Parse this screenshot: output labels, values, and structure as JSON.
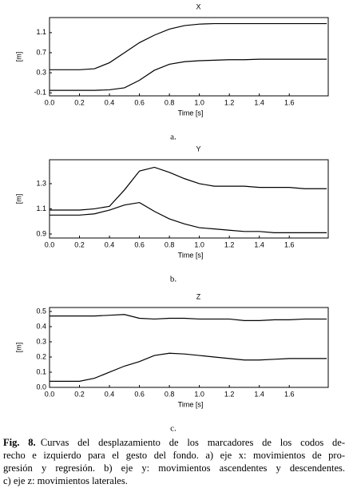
{
  "chart_data": [
    {
      "type": "line",
      "title": "X",
      "xlabel": "Time [s]",
      "ylabel": "[m]",
      "subcaption": "a.",
      "x": [
        0,
        0.1,
        0.2,
        0.3,
        0.4,
        0.5,
        0.6,
        0.7,
        0.8,
        0.9,
        1.0,
        1.1,
        1.2,
        1.3,
        1.4,
        1.5,
        1.6,
        1.7,
        1.85
      ],
      "series": [
        {
          "color": "#000000",
          "values": [
            0.36,
            0.36,
            0.36,
            0.38,
            0.5,
            0.7,
            0.9,
            1.05,
            1.17,
            1.24,
            1.27,
            1.28,
            1.28,
            1.28,
            1.28,
            1.28,
            1.28,
            1.28,
            1.28
          ]
        },
        {
          "color": "#000000",
          "values": [
            -0.05,
            -0.05,
            -0.05,
            -0.05,
            -0.04,
            0.0,
            0.15,
            0.35,
            0.47,
            0.52,
            0.54,
            0.55,
            0.56,
            0.56,
            0.57,
            0.57,
            0.57,
            0.57,
            0.57
          ]
        }
      ],
      "xlim": [
        0,
        1.86
      ],
      "ylim": [
        -0.16,
        1.4
      ],
      "xticks": [
        {
          "value": 0,
          "label": "0.0"
        },
        0.2,
        0.4,
        0.6,
        0.8,
        {
          "value": 1,
          "label": "1.0"
        },
        1.2,
        1.4,
        1.6
      ],
      "yticks": [
        -0.1,
        0.3,
        0.7,
        1.1
      ]
    },
    {
      "type": "line",
      "title": "Y",
      "xlabel": "Time [s]",
      "ylabel": "[m]",
      "subcaption": "b.",
      "x": [
        0,
        0.1,
        0.2,
        0.3,
        0.4,
        0.5,
        0.6,
        0.7,
        0.8,
        0.9,
        1.0,
        1.1,
        1.2,
        1.3,
        1.4,
        1.5,
        1.6,
        1.7,
        1.85
      ],
      "series": [
        {
          "color": "#000000",
          "values": [
            1.09,
            1.09,
            1.09,
            1.1,
            1.12,
            1.25,
            1.4,
            1.43,
            1.39,
            1.34,
            1.3,
            1.28,
            1.28,
            1.28,
            1.27,
            1.27,
            1.27,
            1.26,
            1.26
          ]
        },
        {
          "color": "#000000",
          "values": [
            1.05,
            1.05,
            1.05,
            1.06,
            1.09,
            1.13,
            1.15,
            1.08,
            1.02,
            0.98,
            0.95,
            0.94,
            0.93,
            0.92,
            0.92,
            0.91,
            0.91,
            0.91,
            0.91
          ]
        }
      ],
      "xlim": [
        0,
        1.86
      ],
      "ylim": [
        0.868,
        1.49
      ],
      "xticks": [
        {
          "value": 0,
          "label": "0.0"
        },
        0.2,
        0.4,
        0.6,
        0.8,
        {
          "value": 1,
          "label": "1.0"
        },
        1.2,
        1.4,
        1.6
      ],
      "yticks": [
        0.9,
        1.1,
        1.3
      ]
    },
    {
      "type": "line",
      "title": "Z",
      "xlabel": "Time [s]",
      "ylabel": "[m]",
      "subcaption": "c.",
      "x": [
        0,
        0.1,
        0.2,
        0.3,
        0.4,
        0.5,
        0.6,
        0.7,
        0.8,
        0.9,
        1.0,
        1.1,
        1.2,
        1.3,
        1.4,
        1.5,
        1.6,
        1.7,
        1.85
      ],
      "series": [
        {
          "color": "#000000",
          "values": [
            0.47,
            0.47,
            0.47,
            0.47,
            0.475,
            0.48,
            0.455,
            0.45,
            0.455,
            0.455,
            0.45,
            0.45,
            0.45,
            0.44,
            0.44,
            0.445,
            0.445,
            0.45,
            0.45
          ]
        },
        {
          "color": "#000000",
          "values": [
            0.04,
            0.04,
            0.04,
            0.06,
            0.1,
            0.14,
            0.17,
            0.21,
            0.225,
            0.22,
            0.21,
            0.2,
            0.19,
            0.18,
            0.18,
            0.185,
            0.19,
            0.19,
            0.19
          ]
        }
      ],
      "xlim": [
        0,
        1.86
      ],
      "ylim": [
        0,
        0.526
      ],
      "xticks": [
        {
          "value": 0,
          "label": "0.0"
        },
        0.2,
        0.4,
        0.6,
        0.8,
        {
          "value": 1,
          "label": "1.0"
        },
        1.2,
        1.4,
        1.6
      ],
      "yticks": [
        {
          "value": 0,
          "label": "0.0"
        },
        0.1,
        0.2,
        0.3,
        0.4,
        0.5
      ]
    }
  ],
  "caption": {
    "label": "Fig. 8.",
    "lines": [
      "Curvas del desplazamiento de los marcadores de los codos de-",
      "recho e izquierdo para el gesto del fondo. a) eje x: movimientos de pro-",
      "gresión y regresión. b) eje y: movimientos ascendentes y descendentes.",
      "c) eje z: movimientos laterales."
    ]
  }
}
